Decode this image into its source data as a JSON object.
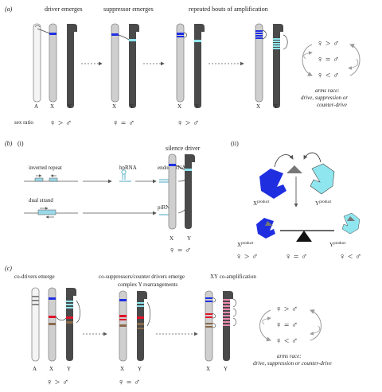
{
  "panel_a": {
    "label": "(a)",
    "stage_labels": [
      "driver emerges",
      "suppressor emerges",
      "repeated bouts of amplification"
    ],
    "chrom_labels_1": [
      "A",
      "X",
      "Y"
    ],
    "chrom_labels_2": [
      "X",
      "Y"
    ],
    "chrom_labels_3": [
      "X",
      "Y"
    ],
    "chrom_labels_4": [
      "X",
      "Y"
    ],
    "sex_ratio_label": "sex ratio",
    "ratios": [
      "♀ > ♂",
      "♀ = ♂",
      "♀ > ♂"
    ],
    "cycle_ratios": [
      "♀ > ♂",
      "♀ = ♂",
      "♀ < ♂"
    ],
    "arms_race_title": "arms race:",
    "arms_race_sub": "drive, suppression or",
    "arms_race_sub2": "counter-drive"
  },
  "panel_b": {
    "label": "(b)",
    "sub_i": "(i)",
    "sub_ii": "(ii)",
    "inverted_repeat": "inverted repeat",
    "dual_strand": "dual strand",
    "hprna": "hpRNA",
    "endo_sirna": "endo-siRNA",
    "pirna": "piRNA",
    "silence_driver": "silence driver",
    "chrom_labels": [
      "X",
      "Y"
    ],
    "ratio": "♀ = ♂",
    "x_product_top": "X",
    "y_product_top": "Y",
    "product_sup": "product",
    "x_product_bot": "X",
    "y_product_bot": "Y",
    "balance_ratios": [
      "♀ > ♂",
      "♀ = ♂",
      "♀ < ♂"
    ]
  },
  "panel_c": {
    "label": "(c)",
    "stage_labels": [
      "co-drivers emerge",
      "co-suppressors/counter drivers emerge",
      "complex Y rearrangements",
      "XY co-amplification"
    ],
    "chrom_labels_1": [
      "A",
      "X",
      "Y"
    ],
    "chrom_labels_2": [
      "X",
      "Y"
    ],
    "chrom_labels_3": [
      "X",
      "Y"
    ],
    "ratios": [
      "♀ > ♂",
      "♀ = ♂"
    ],
    "cycle_ratios": [
      "♀ > ♂",
      "♀ = ♂",
      "♀ < ♂"
    ],
    "arms_race_title": "arms race:",
    "arms_race_sub": "drive, suppression or counter-drive"
  },
  "colors": {
    "x_chrom": "#cfcfcf",
    "y_chrom": "#4a4a4a",
    "a_chrom": "#f4f4f4",
    "driver_blue": "#1f2fe0",
    "suppressor_cyan": "#8fe6ef",
    "red_band": "#e0142a",
    "brown_band": "#8a6a4a",
    "pink_band": "#f08ab0"
  }
}
